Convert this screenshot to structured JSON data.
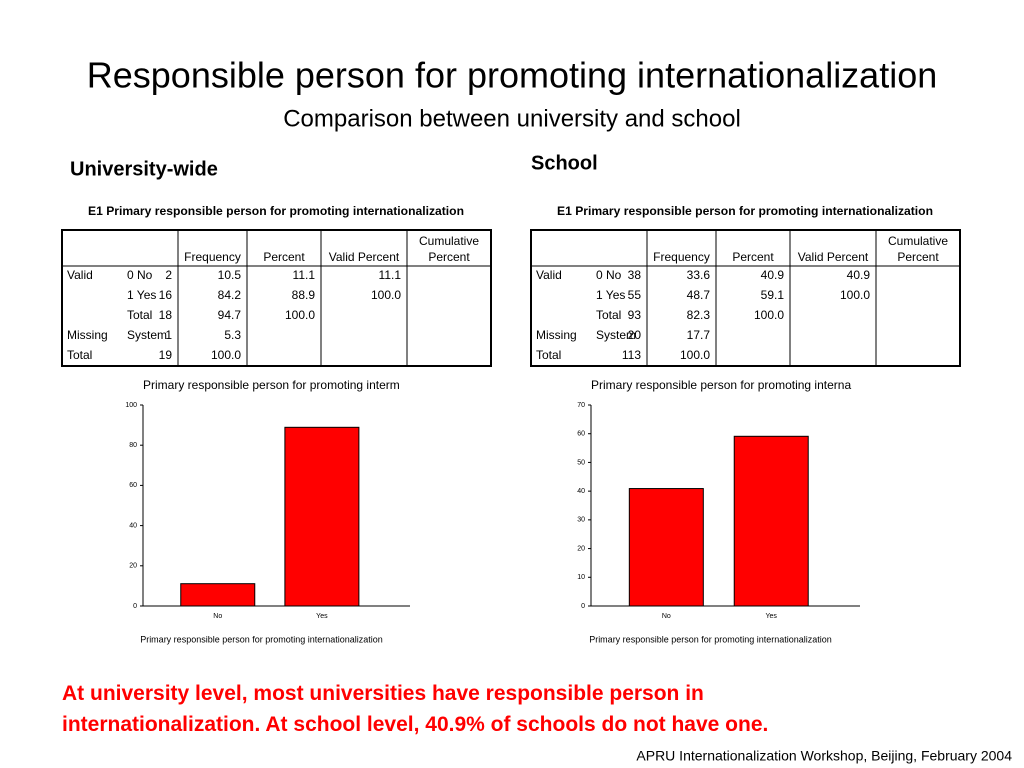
{
  "header": {
    "title": "Responsible person for promoting internationalization",
    "subtitle": "Comparison between university and school"
  },
  "panels": [
    {
      "heading": "University-wide",
      "table": {
        "title": "E1  Primary responsible person for promoting internationalization",
        "columns": [
          "Frequency",
          "Percent",
          "Valid Percent",
          "Cumulative Percent"
        ],
        "rows": [
          [
            "Valid",
            "0  No",
            "2",
            "10.5",
            "11.1",
            "11.1"
          ],
          [
            null,
            "1  Yes",
            "16",
            "84.2",
            "88.9",
            "100.0"
          ],
          [
            null,
            "Total",
            "18",
            "94.7",
            "100.0",
            null
          ],
          [
            "Missing",
            "System",
            "1",
            "5.3",
            null,
            null
          ],
          [
            "Total",
            null,
            "19",
            "100.0",
            null,
            null
          ]
        ]
      }
    },
    {
      "heading": "School",
      "table": {
        "title": "E1  Primary responsible person for promoting internationalization",
        "columns": [
          "Frequency",
          "Percent",
          "Valid Percent",
          "Cumulative Percent"
        ],
        "rows": [
          [
            "Valid",
            "0  No",
            "38",
            "33.6",
            "40.9",
            "40.9"
          ],
          [
            null,
            "1  Yes",
            "55",
            "48.7",
            "59.1",
            "100.0"
          ],
          [
            null,
            "Total",
            "93",
            "82.3",
            "100.0",
            null
          ],
          [
            "Missing",
            "System",
            "20",
            "17.7",
            null,
            null
          ],
          [
            "Total",
            null,
            "113",
            "100.0",
            null,
            null
          ]
        ]
      }
    }
  ],
  "chart_data": [
    {
      "type": "bar",
      "title": "Primary responsible person for promoting interm",
      "x_label": "Primary responsible person for promoting internationalization",
      "categories": [
        "No",
        "Yes"
      ],
      "values": [
        11.1,
        88.9
      ],
      "color": "#ff0000",
      "ylim": [
        0,
        100
      ],
      "yticks": [
        0,
        20,
        40,
        60,
        80,
        100
      ]
    },
    {
      "type": "bar",
      "title": "Primary responsible person for promoting interna",
      "x_label": "Primary responsible person for promoting internationalization",
      "categories": [
        "No",
        "Yes"
      ],
      "values": [
        40.9,
        59.1
      ],
      "color": "#ff0000",
      "ylim": [
        0,
        70
      ],
      "yticks": [
        0,
        10,
        20,
        30,
        40,
        50,
        60,
        70
      ]
    }
  ],
  "conclusion": "At university level, most universities have responsible person in internationalization. At school level, 40.9% of schools do not have one.",
  "footer": "APRU Internationalization Workshop, Beijing, February 2004"
}
